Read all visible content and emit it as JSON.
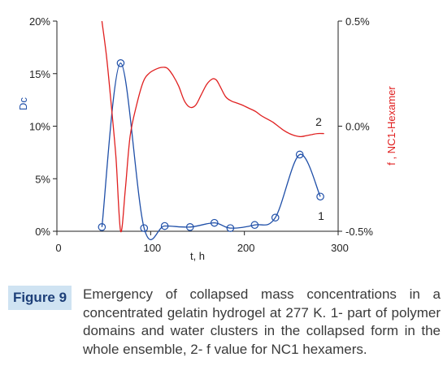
{
  "chart_data": {
    "type": "line",
    "xlabel": "t, h",
    "ylabel_left": "Dc",
    "ylabel_right": "f , NC1-Hexamer",
    "xlim": [
      0,
      300
    ],
    "ylim_left": [
      0,
      20
    ],
    "ylim_right": [
      -0.5,
      0.5
    ],
    "x_ticks": [
      "0",
      "100",
      "200",
      "300"
    ],
    "y_ticks_left": [
      "0%",
      "5%",
      "10%",
      "15%",
      "20%"
    ],
    "y_ticks_right": [
      "-0.5%",
      "0.0%",
      "0.5%"
    ],
    "grid": false,
    "series": [
      {
        "name": "1",
        "axis": "left",
        "color": "#1f4fa8",
        "markers": true,
        "x": [
          48,
          68,
          93,
          115,
          142,
          168,
          185,
          211,
          233,
          259,
          281
        ],
        "values": [
          0.4,
          16.0,
          0.3,
          0.5,
          0.4,
          0.8,
          0.3,
          0.6,
          1.3,
          7.3,
          3.3
        ]
      },
      {
        "name": "2",
        "axis": "right",
        "color": "#e02020",
        "markers": false,
        "x": [
          48,
          53,
          58,
          63,
          68,
          73,
          78,
          85,
          92,
          98,
          105,
          112,
          118,
          124,
          130,
          136,
          142,
          148,
          154,
          160,
          166,
          170,
          174,
          180,
          186,
          192,
          198,
          205,
          212,
          218,
          224,
          230,
          236,
          242,
          248,
          254,
          260,
          266,
          272,
          278,
          285
        ],
        "values": [
          0.5,
          0.33,
          0.1,
          -0.15,
          -0.5,
          -0.3,
          -0.05,
          0.1,
          0.21,
          0.25,
          0.27,
          0.28,
          0.275,
          0.24,
          0.19,
          0.12,
          0.09,
          0.1,
          0.15,
          0.2,
          0.225,
          0.22,
          0.19,
          0.14,
          0.12,
          0.11,
          0.1,
          0.085,
          0.07,
          0.05,
          0.035,
          0.02,
          0.0,
          -0.02,
          -0.035,
          -0.045,
          -0.05,
          -0.045,
          -0.04,
          -0.035,
          -0.035
        ]
      }
    ]
  },
  "caption": {
    "figure_label": "Figure 9",
    "text": "Emergency of collapsed mass concentrations in a concentrated gelatin hydrogel at 277 K. 1- part of polymer domains and water clusters in the collapsed form in the whole ensemble, 2- f value for NC1 hexamers."
  },
  "colors": {
    "left_axis_title": "#1f4fa8",
    "right_axis_title": "#e02020",
    "figure_label_bg": "#cfe3f2",
    "figure_label_text": "#1d3f78"
  }
}
